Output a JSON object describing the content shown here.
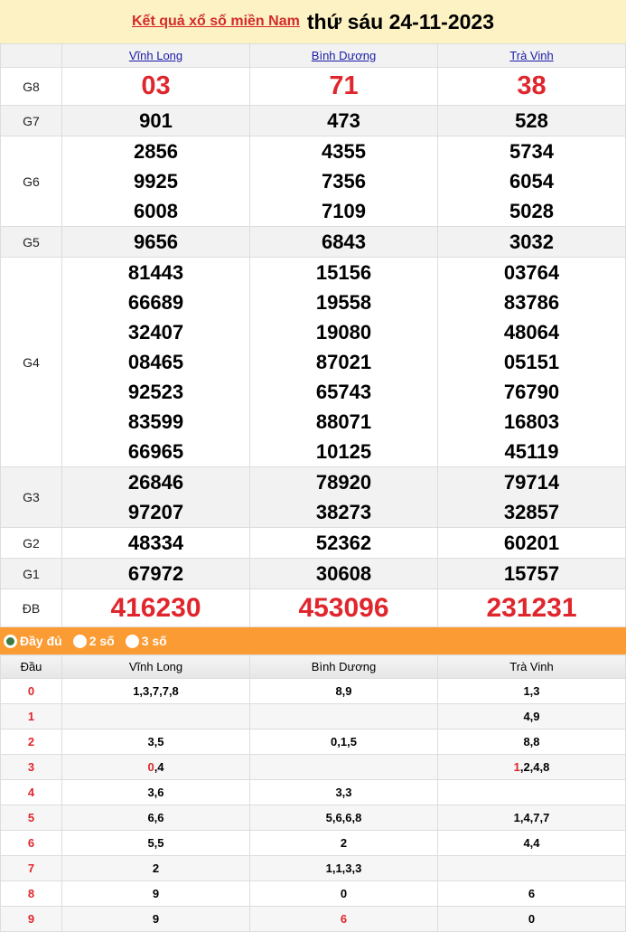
{
  "header": {
    "link": "Kết quả xổ số miền Nam",
    "date": "thứ sáu 24-11-2023"
  },
  "provinces": [
    "Vĩnh Long",
    "Bình Dương",
    "Trà Vinh"
  ],
  "prizes": [
    {
      "label": "G8",
      "values": [
        [
          "03"
        ],
        [
          "71"
        ],
        [
          "38"
        ]
      ]
    },
    {
      "label": "G7",
      "values": [
        [
          "901"
        ],
        [
          "473"
        ],
        [
          "528"
        ]
      ]
    },
    {
      "label": "G6",
      "values": [
        [
          "2856",
          "9925",
          "6008"
        ],
        [
          "4355",
          "7356",
          "7109"
        ],
        [
          "5734",
          "6054",
          "5028"
        ]
      ]
    },
    {
      "label": "G5",
      "values": [
        [
          "9656"
        ],
        [
          "6843"
        ],
        [
          "3032"
        ]
      ]
    },
    {
      "label": "G4",
      "values": [
        [
          "81443",
          "66689",
          "32407",
          "08465",
          "92523",
          "83599",
          "66965"
        ],
        [
          "15156",
          "19558",
          "19080",
          "87021",
          "65743",
          "88071",
          "10125"
        ],
        [
          "03764",
          "83786",
          "48064",
          "05151",
          "76790",
          "16803",
          "45119"
        ]
      ]
    },
    {
      "label": "G3",
      "values": [
        [
          "26846",
          "97207"
        ],
        [
          "78920",
          "38273"
        ],
        [
          "79714",
          "32857"
        ]
      ]
    },
    {
      "label": "G2",
      "values": [
        [
          "48334"
        ],
        [
          "52362"
        ],
        [
          "60201"
        ]
      ]
    },
    {
      "label": "G1",
      "values": [
        [
          "67972"
        ],
        [
          "30608"
        ],
        [
          "15757"
        ]
      ]
    },
    {
      "label": "ĐB",
      "values": [
        [
          "416230"
        ],
        [
          "453096"
        ],
        [
          "231231"
        ]
      ]
    }
  ],
  "options": [
    {
      "label": "Đầy đủ",
      "selected": true
    },
    {
      "label": "2 số",
      "selected": false
    },
    {
      "label": "3 số",
      "selected": false
    }
  ],
  "loto": {
    "head_label": "Đầu",
    "columns": [
      "Vĩnh Long",
      "Bình Dương",
      "Trà Vinh"
    ],
    "rows": [
      {
        "head": "0",
        "cells": [
          [
            {
              "t": "1,3,7,7,8"
            }
          ],
          [
            {
              "t": "8,9"
            }
          ],
          [
            {
              "t": "1,3"
            }
          ]
        ]
      },
      {
        "head": "1",
        "cells": [
          [],
          [],
          [
            {
              "t": "4,9"
            }
          ]
        ]
      },
      {
        "head": "2",
        "cells": [
          [
            {
              "t": "3,5"
            }
          ],
          [
            {
              "t": "0,1,5"
            }
          ],
          [
            {
              "t": "8,8"
            }
          ]
        ]
      },
      {
        "head": "3",
        "cells": [
          [
            {
              "t": "0",
              "red": true
            },
            {
              "t": ",4"
            }
          ],
          [],
          [
            {
              "t": "1",
              "red": true
            },
            {
              "t": ",2,4,8"
            }
          ]
        ]
      },
      {
        "head": "4",
        "cells": [
          [
            {
              "t": "3,6"
            }
          ],
          [
            {
              "t": "3,3"
            }
          ],
          []
        ]
      },
      {
        "head": "5",
        "cells": [
          [
            {
              "t": "6,6"
            }
          ],
          [
            {
              "t": "5,6,6,8"
            }
          ],
          [
            {
              "t": "1,4,7,7"
            }
          ]
        ]
      },
      {
        "head": "6",
        "cells": [
          [
            {
              "t": "5,5"
            }
          ],
          [
            {
              "t": "2"
            }
          ],
          [
            {
              "t": "4,4"
            }
          ]
        ]
      },
      {
        "head": "7",
        "cells": [
          [
            {
              "t": "2"
            }
          ],
          [
            {
              "t": "1,1,3,3"
            }
          ],
          []
        ]
      },
      {
        "head": "8",
        "cells": [
          [
            {
              "t": "9"
            }
          ],
          [
            {
              "t": "0"
            }
          ],
          [
            {
              "t": "6"
            }
          ]
        ]
      },
      {
        "head": "9",
        "cells": [
          [
            {
              "t": "9"
            }
          ],
          [
            {
              "t": "6",
              "red": true
            }
          ],
          [
            {
              "t": "0"
            }
          ]
        ]
      }
    ]
  },
  "colors": {
    "header_bg": "#fdf2c4",
    "accent_red": "#e0262d",
    "options_bar": "#fb9b34",
    "link_blue": "#1a1aa6"
  }
}
